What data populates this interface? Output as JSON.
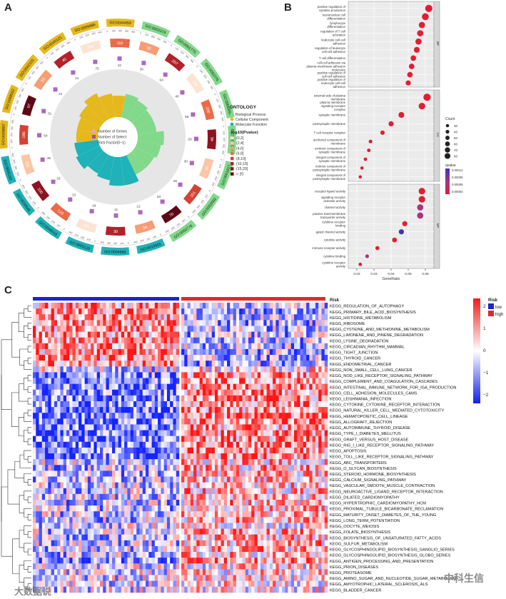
{
  "panels": {
    "a": "A",
    "b": "B",
    "c": "C"
  },
  "watermarks": {
    "left": "大数据说",
    "right": "中科生信"
  },
  "chart_data": [
    {
      "id": "go-circle",
      "type": "circular",
      "legend_title": "ONTOLOGY",
      "ontology": [
        {
          "name": "Biological Process",
          "color": "#82d98a"
        },
        {
          "name": "Cellular Component",
          "color": "#e5b81e"
        },
        {
          "name": "Molecular Function",
          "color": "#1fb2b8"
        }
      ],
      "pvalue_title": "-log10(Pvalue)",
      "pvalue_bins": [
        {
          "label": "(0,2]",
          "color": "#fde3d2"
        },
        {
          "label": "(2,4]",
          "color": "#fbc5a6"
        },
        {
          "label": "(4,6]",
          "color": "#f59d75"
        },
        {
          "label": "(6,8]",
          "color": "#ea6b48"
        },
        {
          "label": "(8,10]",
          "color": "#d44233"
        },
        {
          "label": "(10,15]",
          "color": "#b3222a"
        },
        {
          "label": "(15,20]",
          "color": "#8f1220"
        },
        {
          "label": "> 20",
          "color": "#5e0714"
        }
      ],
      "inner_legend": [
        "Number of Genes",
        "Number of Select",
        "Rich Factor(0~1)"
      ],
      "terms": [
        {
          "id": "GO:0002376",
          "ont": "BP",
          "genes": 95,
          "select": 30,
          "rich": 0.5
        },
        {
          "id": "GO:0001775",
          "ont": "BP",
          "genes": 257,
          "select": 64,
          "rich": 0.45
        },
        {
          "id": "GO:0050776",
          "ont": "BP",
          "genes": 150,
          "select": 40,
          "rich": 0.4
        },
        {
          "id": "GO:0006955",
          "ont": "BP",
          "genes": 200,
          "select": 58,
          "rich": 0.4
        },
        {
          "id": "GO:0051249",
          "ont": "BP",
          "genes": 46,
          "select": 20,
          "rich": 0.55
        },
        {
          "id": "GO:0001817",
          "ont": "BP",
          "genes": 90,
          "select": 30,
          "rich": 0.5
        },
        {
          "id": "GO:0002682",
          "ont": "BP",
          "genes": 151,
          "select": 45,
          "rich": 0.45
        },
        {
          "id": "GO:0050778",
          "ont": "BP",
          "genes": 70,
          "select": 20,
          "rich": 0.45
        },
        {
          "id": "GO:0019955",
          "ont": "MF",
          "genes": 34,
          "select": 12,
          "rich": 0.6
        },
        {
          "id": "GO:0004896",
          "ont": "MF",
          "genes": 30,
          "select": 11,
          "rich": 0.6
        },
        {
          "id": "GO:0005126",
          "ont": "MF",
          "genes": 54,
          "select": 18,
          "rich": 0.5
        },
        {
          "id": "GO:0048018",
          "ont": "MF",
          "genes": 120,
          "select": 31,
          "rich": 0.45
        },
        {
          "id": "GO:0030545",
          "ont": "MF",
          "genes": 100,
          "select": 33,
          "rich": 0.55
        },
        {
          "id": "GO:0005102",
          "ont": "MF",
          "genes": 315,
          "select": 49,
          "rich": 0.5
        },
        {
          "id": "GO:0009897",
          "ont": "CC",
          "genes": 186,
          "select": 54,
          "rich": 0.45
        },
        {
          "id": "GO:0098552",
          "ont": "CC",
          "genes": 97,
          "select": 31,
          "rich": 0.45
        },
        {
          "id": "GO:0042101",
          "ont": "CC",
          "genes": 53,
          "select": 21,
          "rich": 0.5
        },
        {
          "id": "GO:0045121",
          "ont": "CC",
          "genes": 40,
          "select": 14,
          "rich": 0.6
        },
        {
          "id": "GO:0009986",
          "ont": "CC",
          "genes": 350,
          "select": 75,
          "rich": 0.5
        },
        {
          "id": "GO:0044459",
          "ont": "CC",
          "genes": 110,
          "select": 42,
          "rich": 0.45
        }
      ],
      "tick_labels": [
        "0",
        "100",
        "200",
        "300",
        "400"
      ]
    },
    {
      "id": "go-dot",
      "type": "scatter",
      "xlabel": "GeneRatio",
      "xticks": [
        0.02,
        0.03,
        0.04,
        0.05,
        0.06
      ],
      "xlim": [
        0.015,
        0.065
      ],
      "facets": [
        {
          "name": "BP",
          "terms": [
            {
              "label": "positive regulation of cytokine production",
              "x": 0.062,
              "count": 70,
              "q": 1e-05
            },
            {
              "label": "mononuclear cell differentiation",
              "x": 0.06,
              "count": 65,
              "q": 1e-05
            },
            {
              "label": "lymphocyte differentiation",
              "x": 0.058,
              "count": 55,
              "q": 1e-05
            },
            {
              "label": "regulation of T cell activation",
              "x": 0.057,
              "count": 55,
              "q": 1e-05
            },
            {
              "label": "leukocyte cell-cell adhesion",
              "x": 0.056,
              "count": 55,
              "q": 1e-05
            },
            {
              "label": "regulation of leukocyte cell-cell adhesion",
              "x": 0.055,
              "count": 50,
              "q": 1e-05
            },
            {
              "label": "T cell differentiation",
              "x": 0.053,
              "count": 45,
              "q": 1e-05
            },
            {
              "label": "cell-cell adhesion via plasma-membrane adhesion molecules",
              "x": 0.052,
              "count": 45,
              "q": 1e-05
            },
            {
              "label": "positive regulation of cell-cell adhesion",
              "x": 0.051,
              "count": 45,
              "q": 1e-05
            },
            {
              "label": "positive regulation of leukocyte cell-cell adhesion",
              "x": 0.05,
              "count": 40,
              "q": 1e-05
            }
          ]
        },
        {
          "name": "CC",
          "terms": [
            {
              "label": "external side of plasma membrane",
              "x": 0.061,
              "count": 70,
              "q": 1e-05
            },
            {
              "label": "plasma membrane signaling receptor complex",
              "x": 0.058,
              "count": 60,
              "q": 1e-05
            },
            {
              "label": "synaptic membrane",
              "x": 0.046,
              "count": 50,
              "q": 1e-05
            },
            {
              "label": "postsynaptic membrane",
              "x": 0.04,
              "count": 40,
              "q": 1e-05
            },
            {
              "label": "T cell receptor complex",
              "x": 0.035,
              "count": 30,
              "q": 1e-05
            },
            {
              "label": "anchored component of membrane",
              "x": 0.028,
              "count": 20,
              "q": 1e-05
            },
            {
              "label": "extrinsic component of synaptic membrane",
              "x": 0.027,
              "count": 18,
              "q": 1e-05
            },
            {
              "label": "integral component of synaptic membrane",
              "x": 0.025,
              "count": 16,
              "q": 1e-05
            },
            {
              "label": "intrinsic component of postsynaptic membrane",
              "x": 0.023,
              "count": 15,
              "q": 1e-05
            },
            {
              "label": "integral component of postsynaptic membrane",
              "x": 0.022,
              "count": 14,
              "q": 1e-05
            }
          ]
        },
        {
          "name": "MF",
          "terms": [
            {
              "label": "receptor ligand activity",
              "x": 0.058,
              "count": 60,
              "q": 1e-05
            },
            {
              "label": "signaling receptor activator activity",
              "x": 0.058,
              "count": 60,
              "q": 1e-05
            },
            {
              "label": "channel activity",
              "x": 0.057,
              "count": 55,
              "q": 4e-05
            },
            {
              "label": "passive transmembrane transporter activity",
              "x": 0.057,
              "count": 55,
              "q": 4e-05
            },
            {
              "label": "cytokine receptor binding",
              "x": 0.048,
              "count": 40,
              "q": 1e-05
            },
            {
              "label": "gated channel activity",
              "x": 0.046,
              "count": 40,
              "q": 0.00012
            },
            {
              "label": "cytokine activity",
              "x": 0.042,
              "count": 35,
              "q": 1e-05
            },
            {
              "label": "immune receptor activity",
              "x": 0.032,
              "count": 25,
              "q": 1e-05
            },
            {
              "label": "cytokine binding",
              "x": 0.026,
              "count": 20,
              "q": 4e-05
            },
            {
              "label": "cytokine receptor activity",
              "x": 0.022,
              "count": 16,
              "q": 1e-05
            }
          ]
        }
      ],
      "size_legend_title": "Count",
      "size_legend": [
        30,
        40,
        50,
        60,
        70,
        80
      ],
      "color_legend_title": "qvalue",
      "color_legend": [
        "0.00012",
        "0.00009",
        "0.00006",
        "0.00003"
      ]
    },
    {
      "id": "kegg-heatmap",
      "type": "heatmap",
      "annotation_label": "Risk",
      "risk_legend_title": "Risk",
      "risk_levels": [
        {
          "name": "low",
          "color": "#1a26c9"
        },
        {
          "name": "high",
          "color": "#dd2b2b"
        }
      ],
      "scale_ticks": [
        "2",
        "1",
        "0",
        "−1",
        "−2"
      ],
      "n_low": 48,
      "n_high": 48,
      "rows": [
        {
          "name": "KEGG_REGULATION_OF_AUTOPHAGY",
          "g": 1
        },
        {
          "name": "KEGG_PRIMARY_BILE_ACID_BIOSYNTHESIS",
          "g": 1
        },
        {
          "name": "KEGG_HISTIDINE_METABOLISM",
          "g": 1
        },
        {
          "name": "KEGG_RIBOSOME",
          "g": 1
        },
        {
          "name": "KEGG_CYSTEINE_AND_METHIONINE_METABOLISM",
          "g": 1
        },
        {
          "name": "KEGG_LIMONENE_AND_PINENE_DEGRADATION",
          "g": 1
        },
        {
          "name": "KEGG_LYSINE_DEGRADATION",
          "g": 1
        },
        {
          "name": "KEGG_CIRCADIAN_RHYTHM_MAMMAL",
          "g": 1
        },
        {
          "name": "KEGG_TIGHT_JUNCTION",
          "g": 1
        },
        {
          "name": "KEGG_THYROID_CANCER",
          "g": 1
        },
        {
          "name": "KEGG_ENDOMETRIAL_CANCER",
          "g": 1
        },
        {
          "name": "KEGG_NON_SMALL_CELL_LUNG_CANCER",
          "g": 0
        },
        {
          "name": "KEGG_NOD_LIKE_RECEPTOR_SIGNALING_PATHWAY",
          "g": 2
        },
        {
          "name": "KEGG_COMPLEMENT_AND_COAGULATION_CASCADES",
          "g": 2
        },
        {
          "name": "KEGG_INTESTINAL_IMMUNE_NETWORK_FOR_IGA_PRODUCTION",
          "g": 2
        },
        {
          "name": "KEGG_CELL_ADHESION_MOLECULES_CAMS",
          "g": 2
        },
        {
          "name": "KEGG_LEISHMANIA_INFECTION",
          "g": 2
        },
        {
          "name": "KEGG_CYTOKINE_CYTOKINE_RECEPTOR_INTERACTION",
          "g": 2
        },
        {
          "name": "KEGG_NATURAL_KILLER_CELL_MEDIATED_CYTOTOXICITY",
          "g": 2
        },
        {
          "name": "KEGG_HEMATOPOIETIC_CELL_LINEAGE",
          "g": 2
        },
        {
          "name": "KEGG_ALLOGRAFT_REJECTION",
          "g": 2
        },
        {
          "name": "KEGG_AUTOIMMUNE_THYROID_DISEASE",
          "g": 2
        },
        {
          "name": "KEGG_TYPE_I_DIABETES_MELLITUS",
          "g": 2
        },
        {
          "name": "KEGG_GRAFT_VERSUS_HOST_DISEASE",
          "g": 2
        },
        {
          "name": "KEGG_RIG_I_LIKE_RECEPTOR_SIGNALING_PATHWAY",
          "g": 2
        },
        {
          "name": "KEGG_APOPTOSIS",
          "g": 2
        },
        {
          "name": "KEGG_TOLL_LIKE_RECEPTOR_SIGNALING_PATHWAY",
          "g": 2
        },
        {
          "name": "KEGG_ABC_TRANSPORTERS",
          "g": 3
        },
        {
          "name": "KEGG_O_GLYCAN_BIOSYNTHESIS",
          "g": 3
        },
        {
          "name": "KEGG_STEROID_HORMONE_BIOSYNTHESIS",
          "g": 3
        },
        {
          "name": "KEGG_CALCIUM_SIGNALING_PATHWAY",
          "g": 3
        },
        {
          "name": "KEGG_VASCULAR_SMOOTH_MUSCLE_CONTRACTION",
          "g": 3
        },
        {
          "name": "KEGG_NEUROACTIVE_LIGAND_RECEPTOR_INTERACTION",
          "g": 3
        },
        {
          "name": "KEGG_DILATED_CARDIOMYOPATHY",
          "g": 3
        },
        {
          "name": "KEGG_HYPERTROPHIC_CARDIOMYOPATHY_HCM",
          "g": 3
        },
        {
          "name": "KEGG_PROXIMAL_TUBULE_BICARBONATE_RECLAMATION",
          "g": 3
        },
        {
          "name": "KEGG_MATURITY_ONSET_DIABETES_OF_THE_YOUNG",
          "g": 3
        },
        {
          "name": "KEGG_LONG_TERM_POTENTIATION",
          "g": 3
        },
        {
          "name": "KEGG_OOCYTE_MEIOSIS",
          "g": 0
        },
        {
          "name": "KEGG_FOLATE_BIOSYNTHESIS",
          "g": 3
        },
        {
          "name": "KEGG_BIOSYNTHESIS_OF_UNSATURATED_FATTY_ACIDS",
          "g": 3
        },
        {
          "name": "KEGG_SULFUR_METABOLISM",
          "g": 3
        },
        {
          "name": "KEGG_GLYCOSPHINGOLIPID_BIOSYNTHESIS_GANGLIO_SERIES",
          "g": 3
        },
        {
          "name": "KEGG_GLYCOSPHINGOLIPID_BIOSYNTHESIS_GLOBO_SERIES",
          "g": 3
        },
        {
          "name": "KEGG_ANTIGEN_PROCESSING_AND_PRESENTATION",
          "g": 2
        },
        {
          "name": "KEGG_PRION_DISEASES",
          "g": 0
        },
        {
          "name": "KEGG_PROTEASOME",
          "g": 0
        },
        {
          "name": "KEGG_AMINO_SUGAR_AND_NUCLEOTIDE_SUGAR_METABOLISM",
          "g": 0
        },
        {
          "name": "KEGG_AMYOTROPHIC_LATERAL_SCLEROSIS_ALS",
          "g": 0
        },
        {
          "name": "KEGG_BLADDER_CANCER",
          "g": 0
        }
      ]
    }
  ]
}
